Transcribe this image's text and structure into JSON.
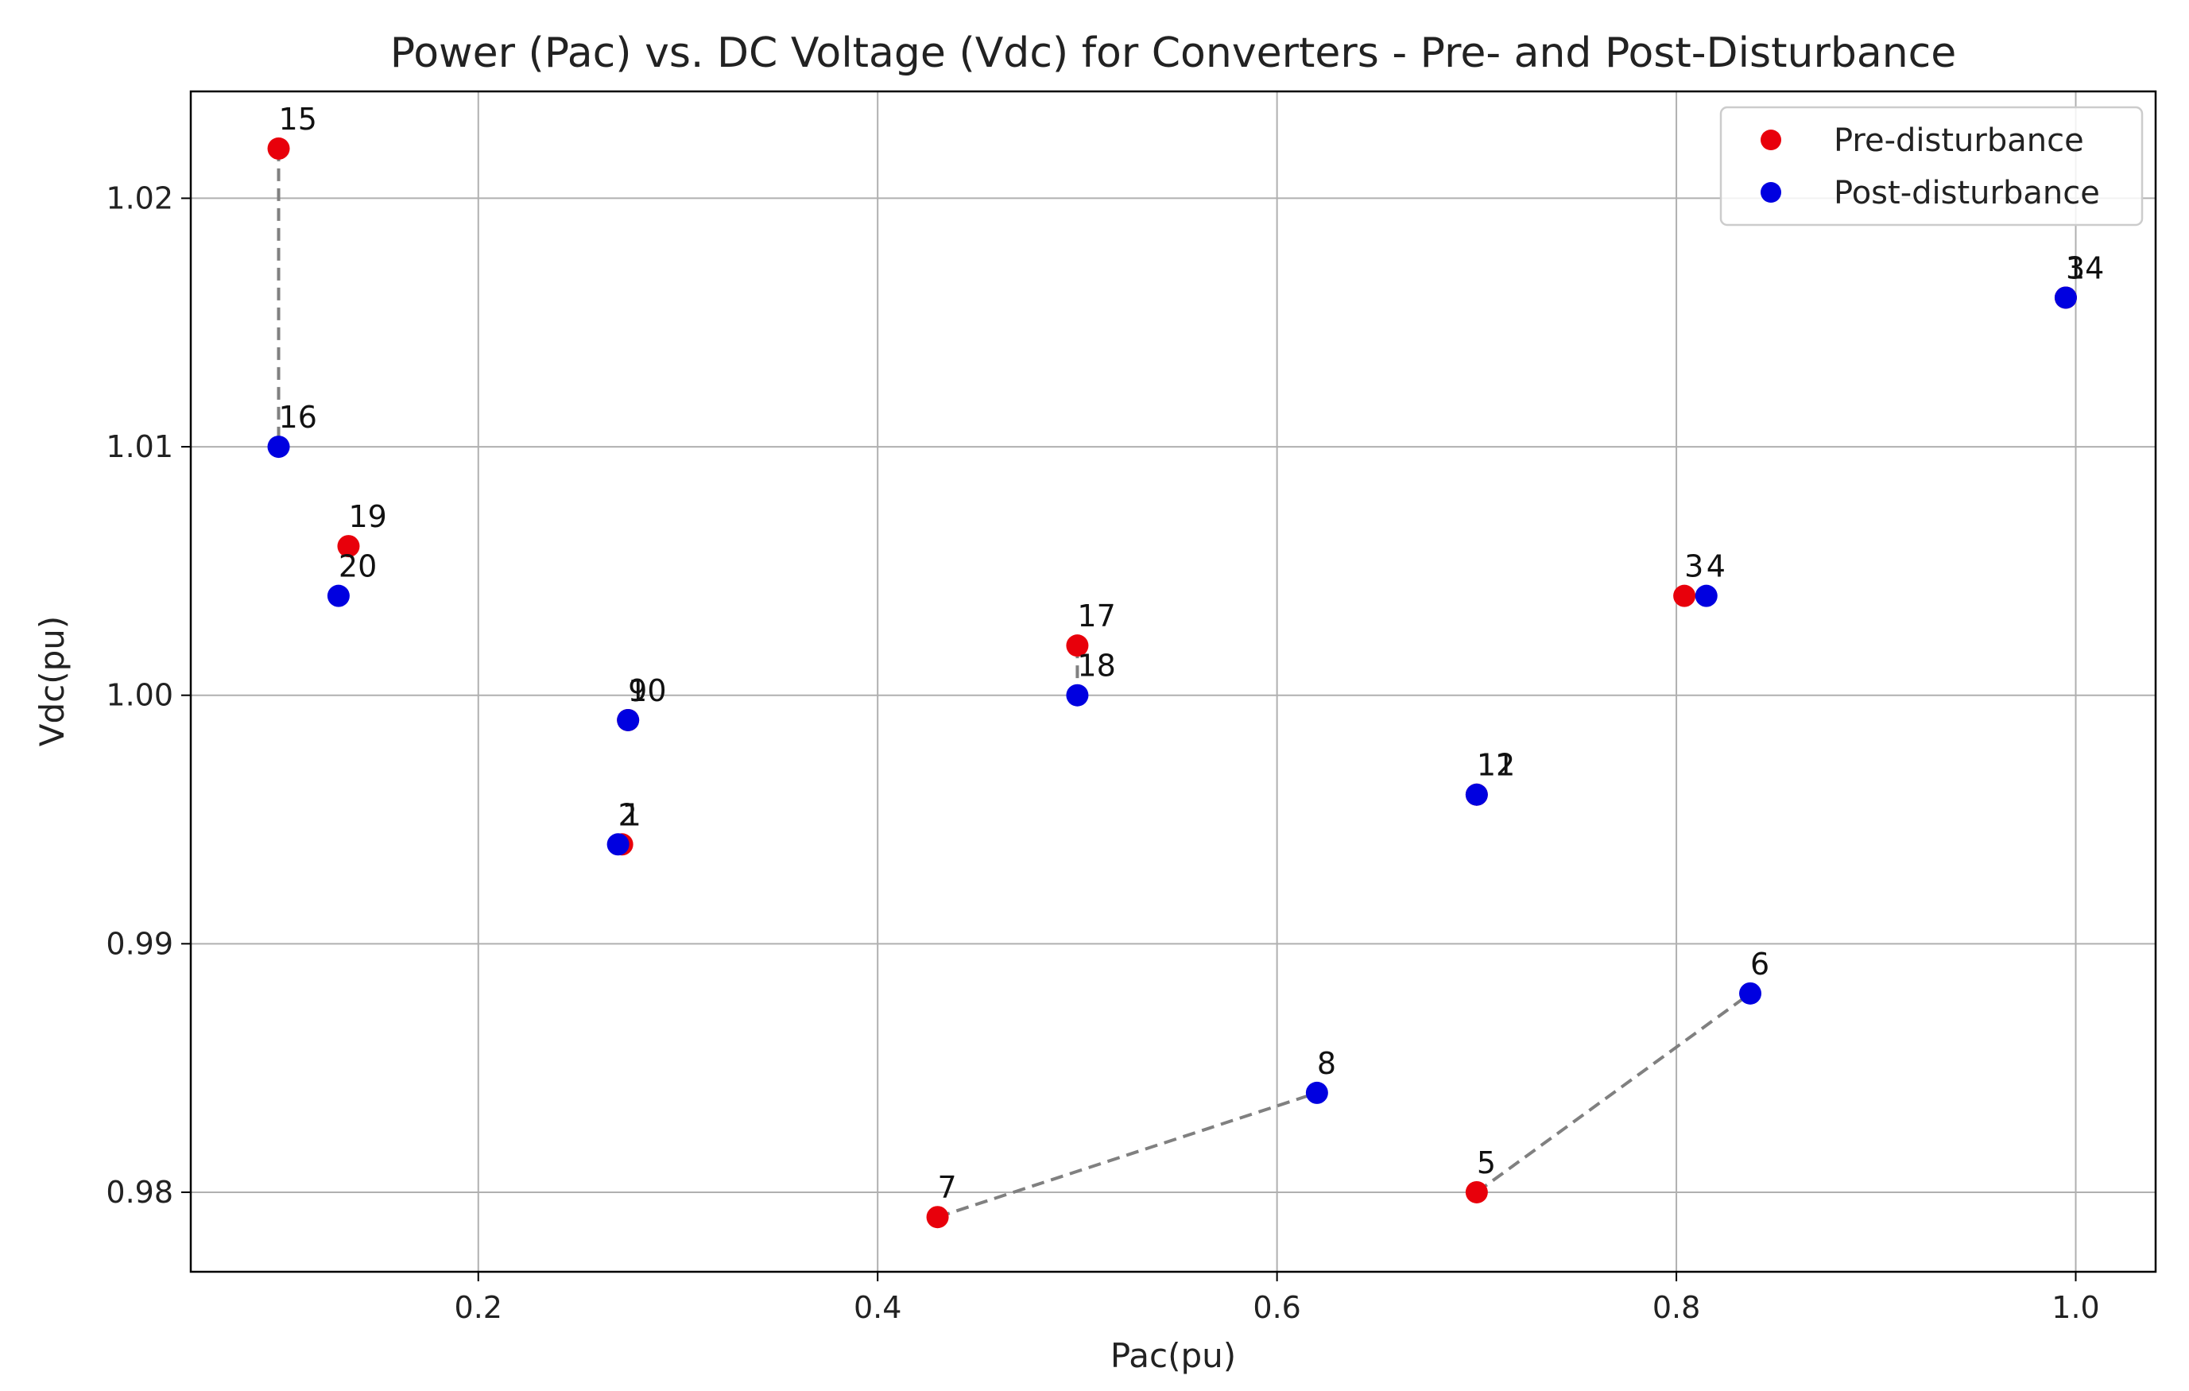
{
  "chart_data": {
    "type": "scatter",
    "title": "Power (Pac) vs. DC Voltage (Vdc) for Converters - Pre- and Post-Disturbance",
    "xlabel": "Pac(pu)",
    "ylabel": "Vdc(pu)",
    "xlim": [
      0.056,
      1.04
    ],
    "ylim": [
      0.9768,
      1.0243
    ],
    "xticks": [
      0.2,
      0.4,
      0.6,
      0.8,
      1.0
    ],
    "xtick_labels": [
      "0.2",
      "0.4",
      "0.6",
      "0.8",
      "1.0"
    ],
    "yticks": [
      0.98,
      0.99,
      1.0,
      1.01,
      1.02
    ],
    "ytick_labels": [
      "0.98",
      "0.99",
      "1.00",
      "1.01",
      "1.02"
    ],
    "grid": true,
    "legend_position": "top-right",
    "series": [
      {
        "name": "Pre-disturbance",
        "color": "#e8000b",
        "points": [
          {
            "label": "1",
            "x": 0.272,
            "y": 0.994
          },
          {
            "label": "3",
            "x": 0.995,
            "y": 1.016
          },
          {
            "label": "3",
            "x": 0.804,
            "y": 1.004
          },
          {
            "label": "5",
            "x": 0.7,
            "y": 0.98
          },
          {
            "label": "7",
            "x": 0.43,
            "y": 0.979
          },
          {
            "label": "9",
            "x": 0.275,
            "y": 0.999
          },
          {
            "label": "11",
            "x": 0.7,
            "y": 0.996
          },
          {
            "label": "15",
            "x": 0.1,
            "y": 1.022
          },
          {
            "label": "17",
            "x": 0.5,
            "y": 1.002
          },
          {
            "label": "19",
            "x": 0.135,
            "y": 1.006
          }
        ]
      },
      {
        "name": "Post-disturbance",
        "color": "#0000e0",
        "points": [
          {
            "label": "2",
            "x": 0.27,
            "y": 0.994
          },
          {
            "label": "14",
            "x": 0.995,
            "y": 1.016
          },
          {
            "label": "4",
            "x": 0.815,
            "y": 1.004
          },
          {
            "label": "6",
            "x": 0.837,
            "y": 0.988
          },
          {
            "label": "8",
            "x": 0.62,
            "y": 0.984
          },
          {
            "label": "10",
            "x": 0.275,
            "y": 0.999
          },
          {
            "label": "12",
            "x": 0.7,
            "y": 0.996
          },
          {
            "label": "16",
            "x": 0.1,
            "y": 1.01
          },
          {
            "label": "18",
            "x": 0.5,
            "y": 1.0
          },
          {
            "label": "20",
            "x": 0.13,
            "y": 1.004
          }
        ]
      }
    ],
    "connections": [
      {
        "from": [
          0.1,
          1.022
        ],
        "to": [
          0.1,
          1.01
        ]
      },
      {
        "from": [
          0.43,
          0.979
        ],
        "to": [
          0.62,
          0.984
        ]
      },
      {
        "from": [
          0.7,
          0.98
        ],
        "to": [
          0.837,
          0.988
        ]
      },
      {
        "from": [
          0.5,
          1.002
        ],
        "to": [
          0.5,
          1.0
        ]
      }
    ]
  }
}
